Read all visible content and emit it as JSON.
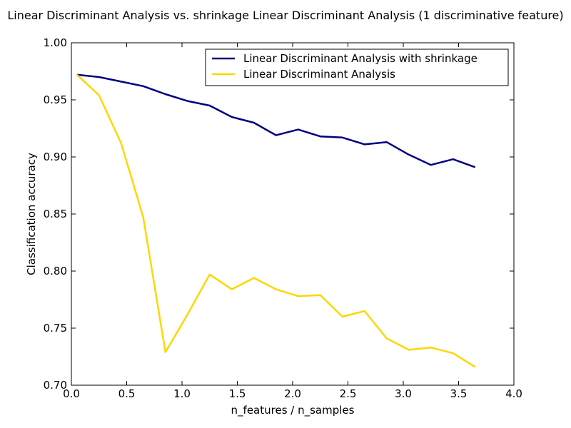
{
  "chart_data": {
    "type": "line",
    "title": "Linear Discriminant Analysis vs. shrinkage Linear Discriminant Analysis (1 discriminative feature)",
    "xlabel": "n_features / n_samples",
    "ylabel": "Classification accuracy",
    "xlim": [
      0.0,
      4.0
    ],
    "ylim": [
      0.7,
      1.0
    ],
    "xticks": [
      0.0,
      0.5,
      1.0,
      1.5,
      2.0,
      2.5,
      3.0,
      3.5,
      4.0
    ],
    "xtick_labels": [
      "0.0",
      "0.5",
      "1.0",
      "1.5",
      "2.0",
      "2.5",
      "3.0",
      "3.5",
      "4.0"
    ],
    "yticks": [
      0.7,
      0.75,
      0.8,
      0.85,
      0.9,
      0.95,
      1.0
    ],
    "ytick_labels": [
      "0.70",
      "0.75",
      "0.80",
      "0.85",
      "0.90",
      "0.95",
      "1.00"
    ],
    "grid": false,
    "legend_position": "top-right",
    "x": [
      0.05,
      0.25,
      0.45,
      0.65,
      0.85,
      1.05,
      1.25,
      1.45,
      1.65,
      1.85,
      2.05,
      2.25,
      2.45,
      2.65,
      2.85,
      3.05,
      3.25,
      3.45,
      3.65
    ],
    "series": [
      {
        "name": "Linear Discriminant Analysis with shrinkage",
        "color": "#000080",
        "values": [
          0.972,
          0.97,
          0.966,
          0.962,
          0.955,
          0.949,
          0.945,
          0.935,
          0.93,
          0.919,
          0.924,
          0.918,
          0.917,
          0.911,
          0.913,
          0.902,
          0.893,
          0.898,
          0.891
        ]
      },
      {
        "name": "Linear Discriminant Analysis",
        "color": "#ffd700",
        "values": [
          0.972,
          0.954,
          0.912,
          0.847,
          0.729,
          0.762,
          0.797,
          0.784,
          0.794,
          0.784,
          0.778,
          0.779,
          0.76,
          0.765,
          0.741,
          0.731,
          0.733,
          0.728,
          0.716
        ]
      }
    ]
  }
}
